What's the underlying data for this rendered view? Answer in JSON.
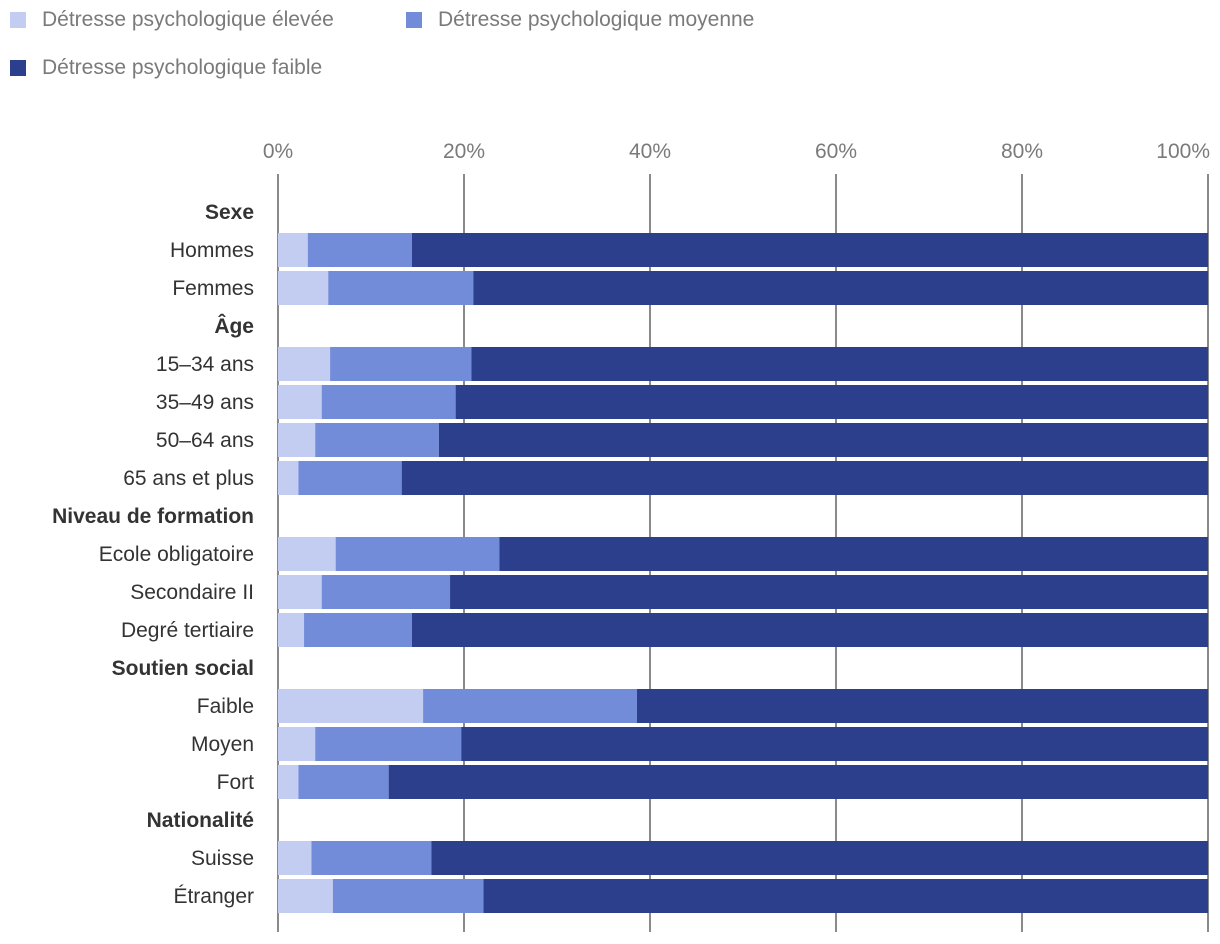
{
  "chart_data": {
    "type": "bar",
    "orientation": "horizontal",
    "stacked": true,
    "legend_position": "top-left",
    "xlim": [
      0,
      100
    ],
    "ticks": [
      0,
      20,
      40,
      60,
      80,
      100
    ],
    "tick_labels": [
      "0%",
      "20%",
      "40%",
      "60%",
      "80%",
      "100%"
    ],
    "colors": {
      "elevee": "#c3cdf2",
      "moyenne": "#738cd9",
      "faible": "#2b3f8c",
      "grid": "#8a8a8a",
      "tick_text": "#7a7a7a",
      "label_text": "#333333"
    },
    "legend": [
      {
        "key": "elevee",
        "label": "Détresse psychologique élevée"
      },
      {
        "key": "moyenne",
        "label": "Détresse psychologique moyenne"
      },
      {
        "key": "faible",
        "label": "Détresse psychologique faible"
      }
    ],
    "rows": [
      {
        "label": "Sexe",
        "header": true
      },
      {
        "label": "Hommes",
        "values": [
          3.2,
          11.2,
          85.6
        ]
      },
      {
        "label": "Femmes",
        "values": [
          5.4,
          15.6,
          79.0
        ]
      },
      {
        "label": "Âge",
        "header": true
      },
      {
        "label": "15–34 ans",
        "values": [
          5.6,
          15.2,
          79.2
        ]
      },
      {
        "label": "35–49 ans",
        "values": [
          4.7,
          14.4,
          80.9
        ]
      },
      {
        "label": "50–64 ans",
        "values": [
          4.0,
          13.3,
          82.7
        ]
      },
      {
        "label": "65 ans et plus",
        "values": [
          2.2,
          11.1,
          86.7
        ]
      },
      {
        "label": "Niveau de formation",
        "header": true
      },
      {
        "label": "Ecole obligatoire",
        "values": [
          6.2,
          17.6,
          76.2
        ]
      },
      {
        "label": "Secondaire II",
        "values": [
          4.7,
          13.8,
          81.5
        ]
      },
      {
        "label": "Degré tertiaire",
        "values": [
          2.8,
          11.6,
          85.6
        ]
      },
      {
        "label": "Soutien social",
        "header": true
      },
      {
        "label": "Faible",
        "values": [
          15.6,
          23.0,
          61.4
        ]
      },
      {
        "label": "Moyen",
        "values": [
          4.0,
          15.7,
          80.3
        ]
      },
      {
        "label": "Fort",
        "values": [
          2.2,
          9.7,
          88.1
        ]
      },
      {
        "label": "Nationalité",
        "header": true
      },
      {
        "label": "Suisse",
        "values": [
          3.6,
          12.9,
          83.5
        ]
      },
      {
        "label": "Étranger",
        "values": [
          5.9,
          16.2,
          77.9
        ]
      }
    ]
  }
}
